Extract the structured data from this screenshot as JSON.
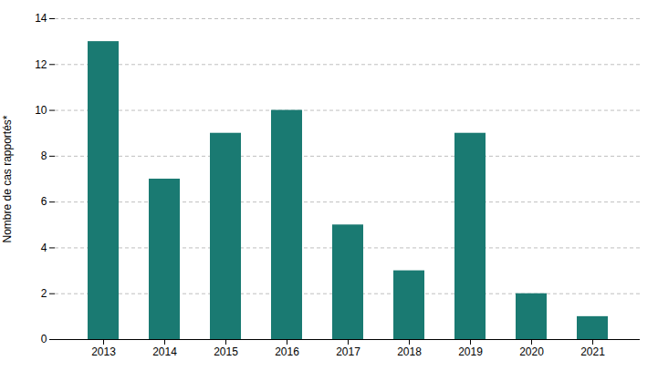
{
  "chart_data": {
    "type": "bar",
    "ylabel": "Nombre de cas rapportés*",
    "categories": [
      "2013",
      "2014",
      "2015",
      "2016",
      "2017",
      "2018",
      "2019",
      "2020",
      "2021"
    ],
    "values": [
      13,
      7,
      9,
      10,
      5,
      3,
      9,
      2,
      1
    ],
    "color": "#1a7a72",
    "ylim": [
      0,
      14
    ],
    "yticks": [
      0,
      2,
      4,
      6,
      8,
      10,
      12,
      14
    ],
    "grid": true
  }
}
